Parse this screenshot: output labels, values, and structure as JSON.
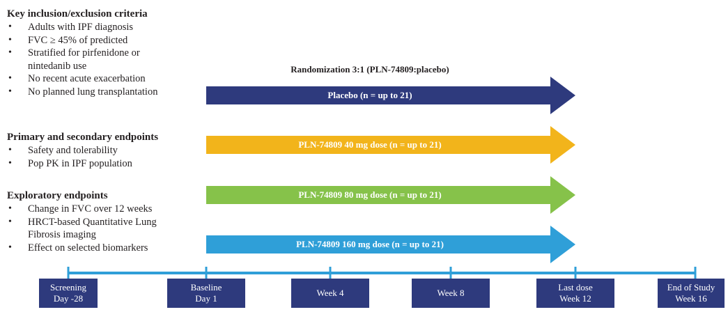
{
  "sections": [
    {
      "title": "Key inclusion/exclusion criteria",
      "items": [
        "Adults with IPF diagnosis",
        "FVC ≥ 45% of predicted",
        "Stratified for pirfenidone or",
        "nintedanib use",
        "No recent acute exacerbation",
        "No planned lung transplantation"
      ]
    },
    {
      "title": "Primary and secondary endpoints",
      "items": [
        "Safety and tolerability",
        "Pop PK in IPF population"
      ]
    },
    {
      "title": "Exploratory endpoints",
      "items": [
        "Change in FVC over 12 weeks",
        "HRCT-based Quantitative Lung",
        "Fibrosis imaging",
        "Effect on selected biomarkers"
      ]
    }
  ],
  "randomization_label": "Randomization 3:1 (PLN-74809:placebo)",
  "arms": [
    {
      "label": "Placebo (n = up to 21)",
      "color": "#2e3a7d"
    },
    {
      "label": "PLN-74809 40 mg dose (n = up to 21)",
      "color": "#f2b41b"
    },
    {
      "label": "PLN-74809 80 mg dose (n = up to 21)",
      "color": "#86c24a"
    },
    {
      "label": "PLN-74809 160 mg dose (n = up to 21)",
      "color": "#2f9fd8"
    }
  ],
  "timeline": {
    "line_color": "#2f9fd8",
    "box_color": "#2e3a7d",
    "points": [
      {
        "line1": "Screening",
        "line2": "Day -28"
      },
      {
        "line1": "Baseline",
        "line2": "Day 1"
      },
      {
        "line1": "Week 4",
        "line2": ""
      },
      {
        "line1": "Week 8",
        "line2": ""
      },
      {
        "line1": "Last dose",
        "line2": "Week 12"
      },
      {
        "line1": "End of Study",
        "line2": "Week 16"
      }
    ]
  }
}
